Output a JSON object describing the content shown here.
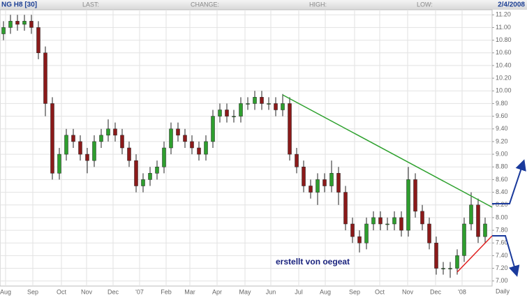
{
  "chart_data": {
    "type": "candlestick",
    "symbol": "NG H8 [30]",
    "header_labels": [
      "LAST:",
      "CHANGE:",
      "HIGH:",
      "LOW:"
    ],
    "date": "2/4/2008",
    "annotation": "erstellt von oegeat",
    "interval": "Daily",
    "up_color": "#2e9e2e",
    "down_color": "#8b1a1a",
    "grid": true,
    "open": [
      10.9,
      11.0,
      11.1,
      11.05,
      11.1,
      11.0,
      10.6,
      9.8,
      8.7,
      9.0,
      9.3,
      9.2,
      9.0,
      8.9,
      9.2,
      9.3,
      9.4,
      9.3,
      9.1,
      8.9,
      8.5,
      8.6,
      8.7,
      8.8,
      9.1,
      9.4,
      9.3,
      9.2,
      9.1,
      9.0,
      9.2,
      9.6,
      9.7,
      9.6,
      9.6,
      9.8,
      9.8,
      9.9,
      9.8,
      9.8,
      9.7,
      9.8,
      9.0,
      8.8,
      8.5,
      8.4,
      8.6,
      8.5,
      8.7,
      8.4,
      7.9,
      7.7,
      7.6,
      7.9,
      8.0,
      7.9,
      7.9,
      8.0,
      7.8,
      8.6,
      8.1,
      7.9,
      7.6,
      7.2,
      7.2,
      7.2,
      7.4,
      7.9,
      8.2,
      7.7
    ],
    "high": [
      11.1,
      11.2,
      11.2,
      11.2,
      11.2,
      11.1,
      10.7,
      9.9,
      9.1,
      9.4,
      9.4,
      9.3,
      9.1,
      9.3,
      9.4,
      9.55,
      9.5,
      9.4,
      9.2,
      9.0,
      8.7,
      8.8,
      8.9,
      9.2,
      9.5,
      9.5,
      9.4,
      9.3,
      9.2,
      9.3,
      9.7,
      9.8,
      9.8,
      9.7,
      9.9,
      9.9,
      10.0,
      10.0,
      9.9,
      9.9,
      9.95,
      9.9,
      9.1,
      8.9,
      8.6,
      8.7,
      8.7,
      8.9,
      8.8,
      8.5,
      8.0,
      7.8,
      8.0,
      8.1,
      8.1,
      8.0,
      8.1,
      8.1,
      8.8,
      8.7,
      8.2,
      8.0,
      7.7,
      7.3,
      7.3,
      7.5,
      8.0,
      8.4,
      8.3,
      8.0
    ],
    "low": [
      10.8,
      10.9,
      10.95,
      10.95,
      10.9,
      10.5,
      9.6,
      8.6,
      8.6,
      8.9,
      9.1,
      8.9,
      8.7,
      8.8,
      9.1,
      9.2,
      9.2,
      9.0,
      8.8,
      8.4,
      8.4,
      8.5,
      8.6,
      8.7,
      9.0,
      9.2,
      9.1,
      9.0,
      8.9,
      8.9,
      9.1,
      9.5,
      9.5,
      9.5,
      9.5,
      9.7,
      9.7,
      9.7,
      9.7,
      9.6,
      9.6,
      8.9,
      8.7,
      8.4,
      8.3,
      8.2,
      8.4,
      8.4,
      8.2,
      7.8,
      7.6,
      7.45,
      7.5,
      7.8,
      7.8,
      7.8,
      7.8,
      7.7,
      7.7,
      8.0,
      7.8,
      7.5,
      7.1,
      7.1,
      7.05,
      7.1,
      7.3,
      7.8,
      7.6,
      7.6
    ],
    "close": [
      11.0,
      11.1,
      11.05,
      11.1,
      11.0,
      10.6,
      9.8,
      8.7,
      9.0,
      9.3,
      9.2,
      9.0,
      8.9,
      9.2,
      9.3,
      9.4,
      9.3,
      9.1,
      8.9,
      8.5,
      8.6,
      8.7,
      8.8,
      9.1,
      9.4,
      9.3,
      9.2,
      9.1,
      9.0,
      9.2,
      9.6,
      9.7,
      9.6,
      9.6,
      9.8,
      9.8,
      9.9,
      9.8,
      9.8,
      9.7,
      9.8,
      9.0,
      8.8,
      8.5,
      8.4,
      8.6,
      8.5,
      8.7,
      8.4,
      7.9,
      7.7,
      7.6,
      7.9,
      8.0,
      7.9,
      7.9,
      8.0,
      7.8,
      8.6,
      8.1,
      7.9,
      7.6,
      7.2,
      7.2,
      7.2,
      7.4,
      7.9,
      8.2,
      7.7,
      7.9
    ],
    "xlim": [
      -0.5,
      70
    ],
    "xticks": [
      {
        "value": 0.3,
        "label": "Aug"
      },
      {
        "value": 4.2,
        "label": "Sep"
      },
      {
        "value": 8.3,
        "label": "Oct"
      },
      {
        "value": 11.9,
        "label": "Nov"
      },
      {
        "value": 15.7,
        "label": "Dec"
      },
      {
        "value": 19.5,
        "label": "'07"
      },
      {
        "value": 23.3,
        "label": "Feb"
      },
      {
        "value": 26.7,
        "label": "Mar"
      },
      {
        "value": 30.6,
        "label": "Apr"
      },
      {
        "value": 34.6,
        "label": "May"
      },
      {
        "value": 38.3,
        "label": "Jun"
      },
      {
        "value": 42.3,
        "label": "Jul"
      },
      {
        "value": 46.1,
        "label": "Aug"
      },
      {
        "value": 50.3,
        "label": "Sep"
      },
      {
        "value": 53.9,
        "label": "Oct"
      },
      {
        "value": 57.9,
        "label": "Nov"
      },
      {
        "value": 61.9,
        "label": "Dec"
      },
      {
        "value": 65.7,
        "label": "'08"
      }
    ],
    "ylim": [
      6.92,
      11.28
    ],
    "yticks": [
      {
        "value": 7,
        "label": "7.00"
      },
      {
        "value": 7.2,
        "label": "7.20"
      },
      {
        "value": 7.4,
        "label": "7.40"
      },
      {
        "value": 7.6,
        "label": "7.60"
      },
      {
        "value": 7.8,
        "label": "7.80"
      },
      {
        "value": 8,
        "label": "8.00"
      },
      {
        "value": 8.2,
        "label": "8.20"
      },
      {
        "value": 8.4,
        "label": "8.40"
      },
      {
        "value": 8.6,
        "label": "8.60"
      },
      {
        "value": 8.8,
        "label": "8.80"
      },
      {
        "value": 9,
        "label": "9.00"
      },
      {
        "value": 9.2,
        "label": "9.20"
      },
      {
        "value": 9.4,
        "label": "9.40"
      },
      {
        "value": 9.6,
        "label": "9.60"
      },
      {
        "value": 9.8,
        "label": "9.80"
      },
      {
        "value": 10,
        "label": "10.00"
      },
      {
        "value": 10.2,
        "label": "10.20"
      },
      {
        "value": 10.4,
        "label": "10.40"
      },
      {
        "value": 10.6,
        "label": "10.60"
      },
      {
        "value": 10.8,
        "label": "10.80"
      },
      {
        "value": 11,
        "label": "11.00"
      },
      {
        "value": 11.2,
        "label": "11.20"
      }
    ]
  }
}
